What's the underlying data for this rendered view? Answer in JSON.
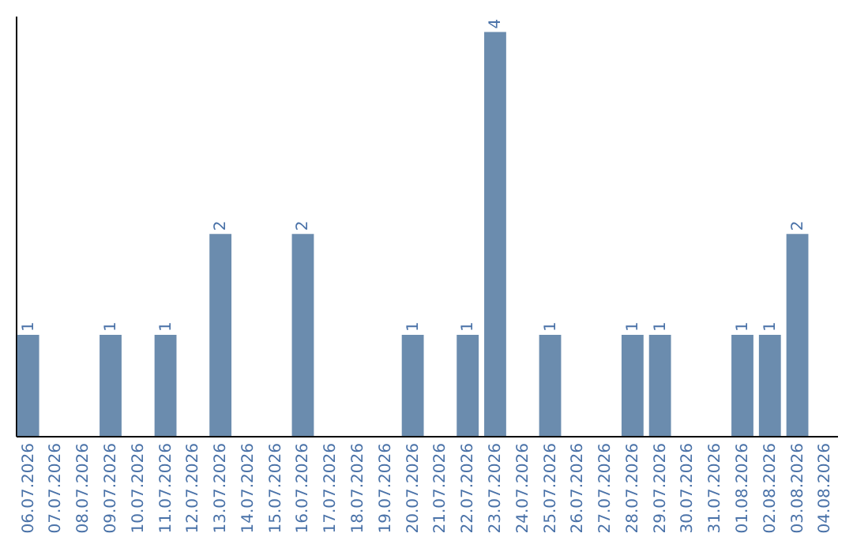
{
  "chart_data": {
    "type": "bar",
    "categories": [
      "06.07.2026",
      "07.07.2026",
      "08.07.2026",
      "09.07.2026",
      "10.07.2026",
      "11.07.2026",
      "12.07.2026",
      "13.07.2026",
      "14.07.2026",
      "15.07.2026",
      "16.07.2026",
      "17.07.2026",
      "18.07.2026",
      "19.07.2026",
      "20.07.2026",
      "21.07.2026",
      "22.07.2026",
      "23.07.2026",
      "24.07.2026",
      "25.07.2026",
      "26.07.2026",
      "27.07.2026",
      "28.07.2026",
      "29.07.2026",
      "30.07.2026",
      "31.07.2026",
      "01.08.2026",
      "02.08.2026",
      "03.08.2026",
      "04.08.2026"
    ],
    "values": [
      1,
      null,
      null,
      1,
      null,
      1,
      null,
      2,
      null,
      null,
      2,
      null,
      null,
      null,
      1,
      null,
      1,
      4,
      null,
      1,
      null,
      null,
      1,
      1,
      null,
      null,
      1,
      1,
      2,
      null
    ],
    "color": "#6b8cae",
    "ylim": [
      0,
      4.16
    ],
    "data_labels": true,
    "tick_labels": "x",
    "grid": false
  }
}
